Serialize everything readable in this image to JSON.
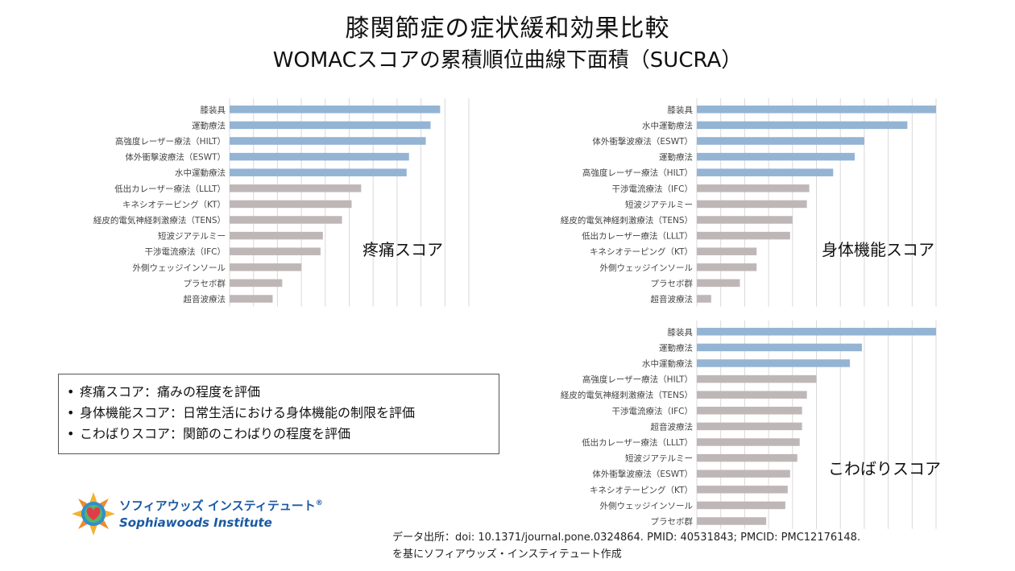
{
  "title": "膝関節症の症状緩和効果比較",
  "subtitle": "WOMACスコアの累積順位曲線下面積（SUCRA）",
  "colors": {
    "highlight": "#94b4d4",
    "other": "#bfb7b7",
    "grid": "#d9d9d9"
  },
  "chart_data": [
    {
      "type": "bar",
      "orientation": "horizontal",
      "title": "疼痛スコア",
      "categories": [
        "膝装具",
        "運動療法",
        "高強度レーザー療法（HILT）",
        "体外衝撃波療法（ESWT）",
        "水中運動療法",
        "低出カレーザー療法（LLLT）",
        "キネシオテーピング（KT）",
        "経皮的電気神経刺激療法（TENS）",
        "短波ジアテルミー",
        "干渉電流療法（IFC）",
        "外側ウェッジインソール",
        "プラセボ群",
        "超音波療法"
      ],
      "values": [
        0.88,
        0.84,
        0.82,
        0.75,
        0.74,
        0.55,
        0.51,
        0.47,
        0.39,
        0.38,
        0.3,
        0.22,
        0.18
      ],
      "highlighted": [
        true,
        true,
        true,
        true,
        true,
        false,
        false,
        false,
        false,
        false,
        false,
        false,
        false
      ],
      "xlim": [
        0,
        1
      ]
    },
    {
      "type": "bar",
      "orientation": "horizontal",
      "title": "身体機能スコア",
      "categories": [
        "膝装具",
        "水中運動療法",
        "体外衝撃波療法（ESWT）",
        "運動療法",
        "高強度レーザー療法（HILT）",
        "干渉電流療法（IFC）",
        "短波ジアテルミー",
        "経皮的電気神経刺激療法（TENS）",
        "低出カレーザー療法（LLLT）",
        "キネシオテーピング（KT）",
        "外側ウェッジインソール",
        "プラセボ群",
        "超音波療法"
      ],
      "values": [
        1.0,
        0.88,
        0.7,
        0.66,
        0.57,
        0.47,
        0.46,
        0.4,
        0.39,
        0.25,
        0.25,
        0.18,
        0.06
      ],
      "highlighted": [
        true,
        true,
        true,
        true,
        true,
        false,
        false,
        false,
        false,
        false,
        false,
        false,
        false
      ],
      "xlim": [
        0,
        1
      ]
    },
    {
      "type": "bar",
      "orientation": "horizontal",
      "title": "こわばりスコア",
      "categories": [
        "膝装具",
        "運動療法",
        "水中運動療法",
        "高強度レーザー療法（HILT）",
        "経皮的電気神経刺激療法（TENS）",
        "干渉電流療法（IFC）",
        "超音波療法",
        "低出カレーザー療法（LLLT）",
        "短波ジアテルミー",
        "体外衝撃波療法（ESWT）",
        "キネシオテーピング（KT）",
        "外側ウェッジインソール",
        "プラセボ群"
      ],
      "values": [
        1.0,
        0.69,
        0.64,
        0.5,
        0.46,
        0.44,
        0.44,
        0.43,
        0.42,
        0.39,
        0.38,
        0.37,
        0.29
      ],
      "highlighted": [
        true,
        true,
        true,
        false,
        false,
        false,
        false,
        false,
        false,
        false,
        false,
        false,
        false
      ],
      "xlim": [
        0,
        1
      ]
    }
  ],
  "legend": {
    "bullet": "•",
    "items": [
      "疼痛スコア：痛みの程度を評価",
      "身体機能スコア：日常生活における身体機能の制限を評価",
      "こわばりスコア：関節のこわばりの程度を評価"
    ]
  },
  "brand": {
    "name_jp": "ソフィアウッズ インスティテュート",
    "name_en": "Sophiawoods Institute",
    "registered": "®"
  },
  "source": {
    "line1": "データ出所：doi: 10.1371/journal.pone.0324864. PMID: 40531843; PMCID: PMC12176148.",
    "line2": "を基にソフィアウッズ・インスティテュート作成"
  }
}
